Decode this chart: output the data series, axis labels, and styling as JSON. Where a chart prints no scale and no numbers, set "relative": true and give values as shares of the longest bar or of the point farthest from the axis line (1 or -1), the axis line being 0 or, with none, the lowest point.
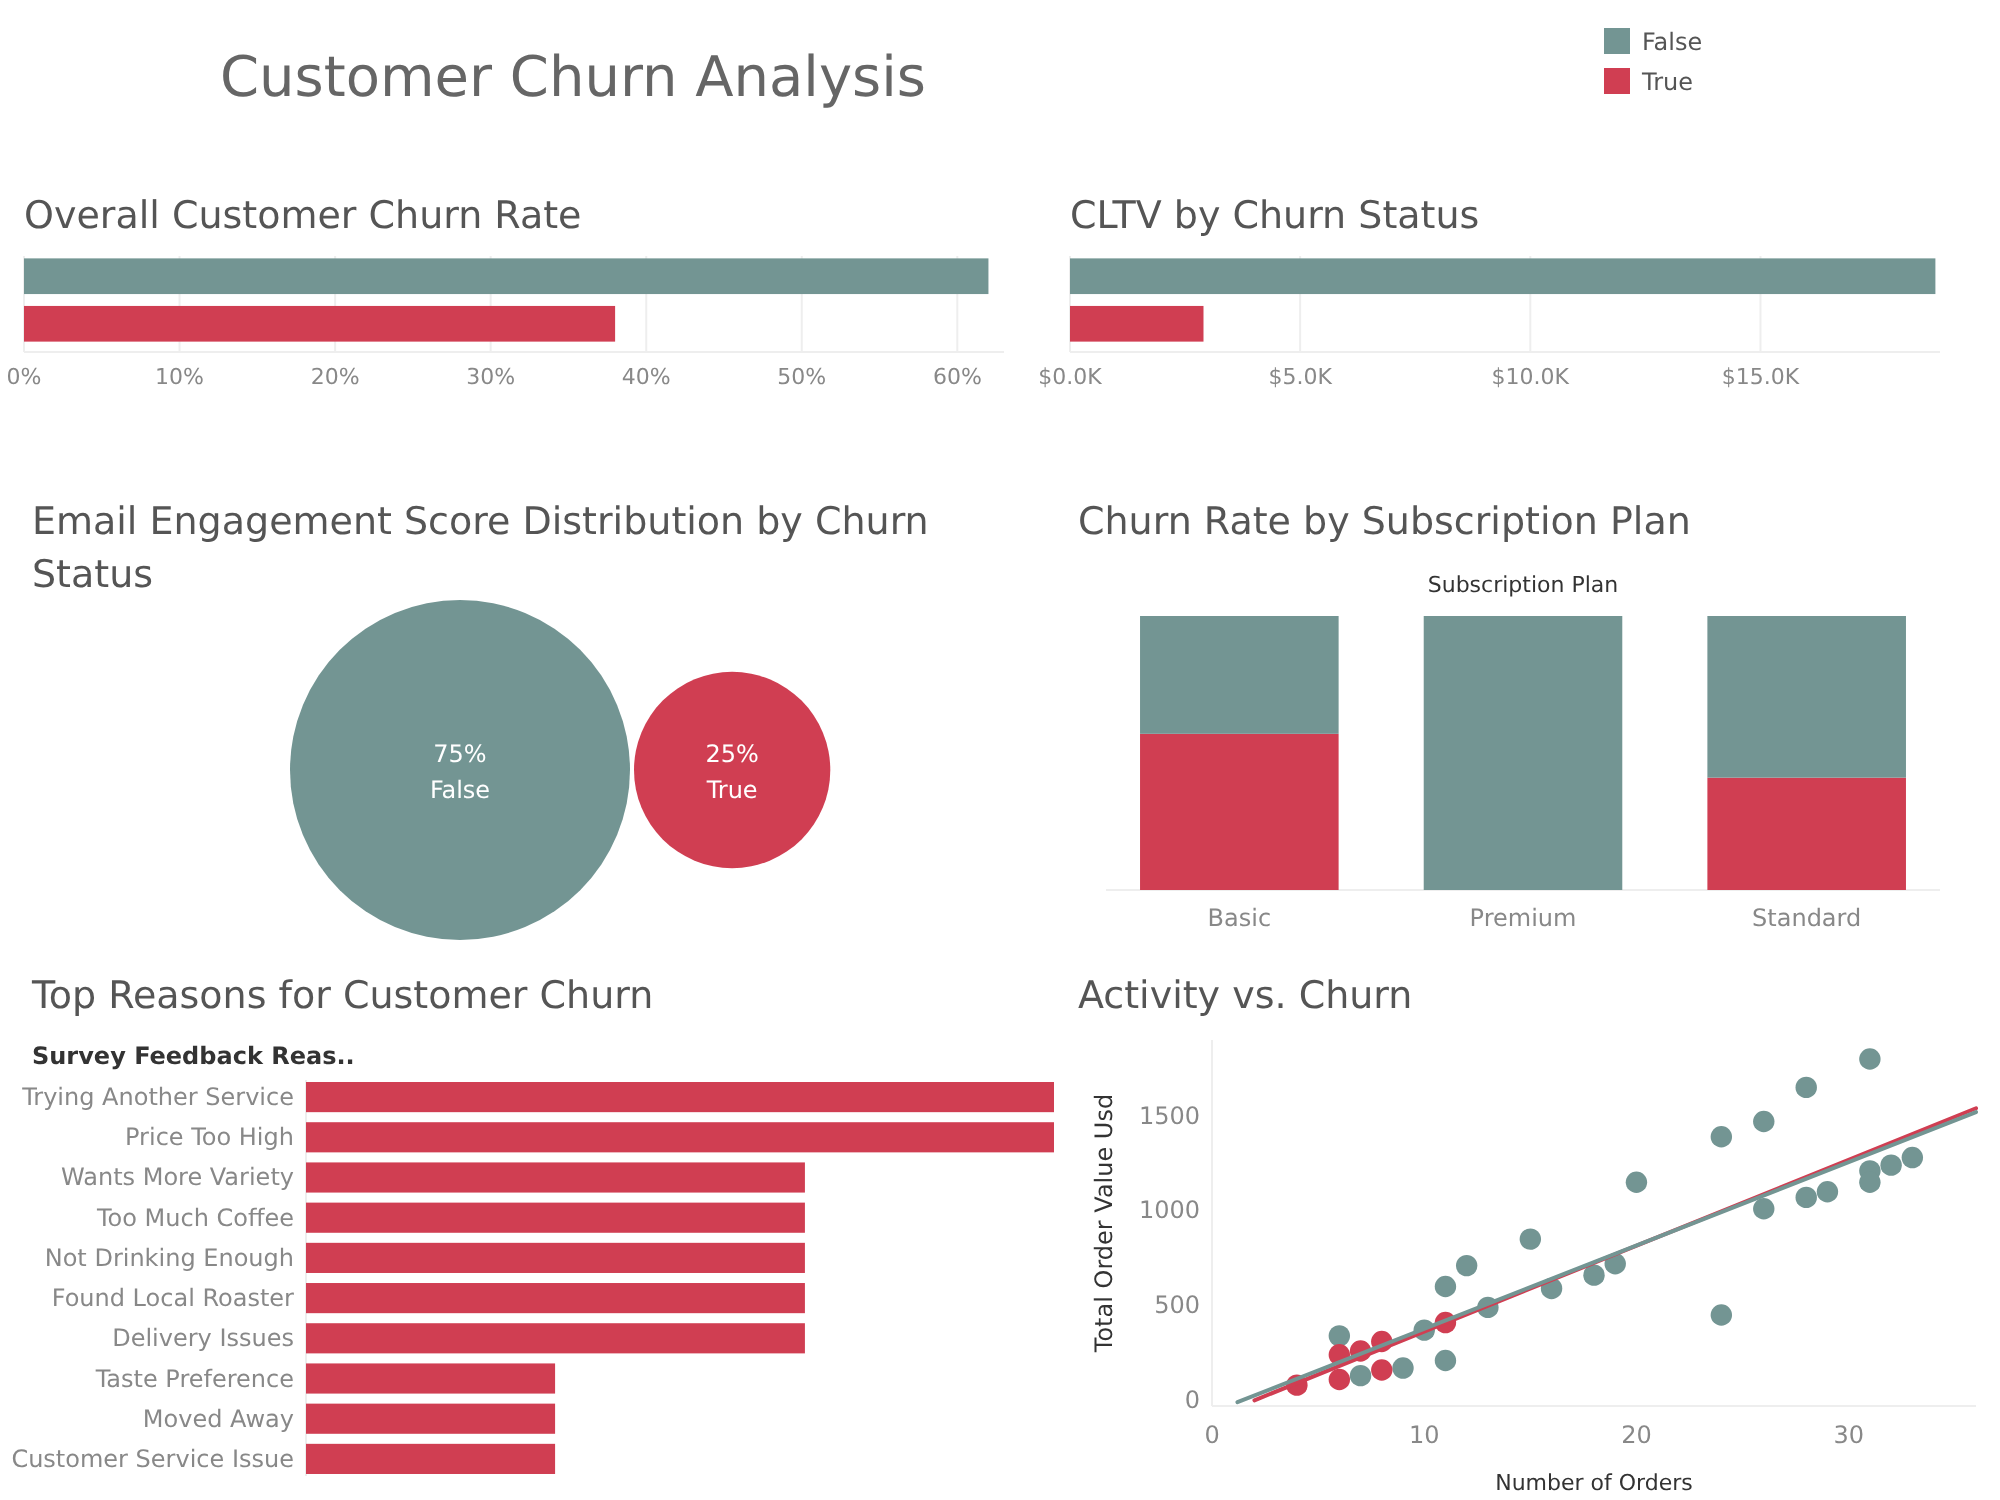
{
  "chart_data": [
    {
      "type": "other",
      "title": "Customer Churn Analysis"
    },
    {
      "type": "bar",
      "title": "Overall Customer Churn Rate",
      "orientation": "horizontal",
      "categories": [
        null,
        null
      ],
      "values": [
        62,
        38
      ],
      "colors": [
        "#739593",
        "#d03e52"
      ],
      "xlim": [
        0,
        63
      ],
      "xticks": [
        {
          "value": 0,
          "label": "0%"
        },
        {
          "value": 10,
          "label": "10%"
        },
        {
          "value": 20,
          "label": "20%"
        },
        {
          "value": 30,
          "label": "30%"
        },
        {
          "value": 40,
          "label": "40%"
        },
        {
          "value": 50,
          "label": "50%"
        },
        {
          "value": 60,
          "label": "60%"
        }
      ],
      "grid": "x"
    },
    {
      "type": "bar",
      "title": "CLTV by Churn Status",
      "orientation": "horizontal",
      "categories": [
        null,
        null
      ],
      "values": [
        18800,
        2900
      ],
      "colors": [
        "#739593",
        "#d03e52"
      ],
      "xlim": [
        0,
        18900
      ],
      "xticks": [
        {
          "value": 0,
          "label": "$0.0K"
        },
        {
          "value": 5000,
          "label": "$5.0K"
        },
        {
          "value": 10000,
          "label": "$10.0K"
        },
        {
          "value": 15000,
          "label": "$15.0K"
        }
      ],
      "grid": "x"
    },
    {
      "type": "other",
      "title": "Email Engagement Score Distribution by Churn Status",
      "categories": [
        "False",
        "True"
      ],
      "values": [
        75,
        25
      ],
      "value_labels": [
        "75%",
        "25%"
      ],
      "colors": [
        "#739593",
        "#d03e52"
      ]
    },
    {
      "type": "bar",
      "title": "Churn Rate by Subscription Plan",
      "xlabel": "Subscription Plan",
      "categories": [
        "Basic",
        "Premium",
        "Standard"
      ],
      "stacked": true,
      "relative": true,
      "series": [
        {
          "name": "True",
          "color": "#d03e52",
          "values": [
            0.57,
            0,
            0.41
          ]
        },
        {
          "name": "False",
          "color": "#739593",
          "values": [
            0.43,
            1,
            0.59
          ]
        }
      ],
      "legend": "top right"
    },
    {
      "type": "bar",
      "title": "Top Reasons for Customer Churn",
      "ylabel": "Survey Feedback Reas..",
      "orientation": "horizontal",
      "relative": true,
      "color": "#d03e52",
      "categories": [
        "Trying Another Service",
        "Price Too High",
        "Wants More Variety",
        "Too Much Coffee",
        "Not Drinking Enough",
        "Found Local Roaster",
        "Delivery Issues",
        "Taste Preference",
        "Moved Away",
        "Customer Service Issue"
      ],
      "values": [
        1,
        1,
        0.667,
        0.667,
        0.667,
        0.667,
        0.667,
        0.333,
        0.333,
        0.333
      ]
    },
    {
      "type": "scatter",
      "title": "Activity vs. Churn",
      "xlabel": "Number of Orders",
      "ylabel": "Total Order Value Usd",
      "marker": "circle",
      "series": [
        {
          "color": "#739593",
          "x": [
            6,
            7,
            9,
            10,
            11,
            11,
            12,
            13,
            15,
            16,
            18,
            19,
            20,
            24,
            24,
            26,
            26,
            28,
            28,
            29,
            31,
            31,
            31,
            32,
            33
          ],
          "values": [
            340,
            130,
            170,
            370,
            600,
            210,
            710,
            490,
            850,
            590,
            660,
            720,
            1150,
            450,
            1390,
            1010,
            1470,
            1070,
            1650,
            1100,
            1210,
            1150,
            1800,
            1240,
            1280
          ]
        },
        {
          "color": "#d03e52",
          "x": [
            4,
            6,
            6,
            7,
            8,
            8,
            11
          ],
          "values": [
            80,
            240,
            110,
            260,
            310,
            160,
            410
          ]
        },
        {
          "type": "line",
          "marker": "none",
          "color": "#d03e52",
          "x": [
            2,
            36
          ],
          "values": [
            0,
            1540
          ]
        },
        {
          "type": "line",
          "marker": "none",
          "color": "#739593",
          "x": [
            1.2,
            36
          ],
          "values": [
            -10,
            1520
          ]
        }
      ],
      "xlim": [
        0,
        36
      ],
      "xticks": [
        0,
        10,
        20,
        30
      ],
      "ylim": [
        -30,
        1900
      ],
      "yticks": [
        0,
        500,
        1000,
        1500
      ]
    }
  ]
}
